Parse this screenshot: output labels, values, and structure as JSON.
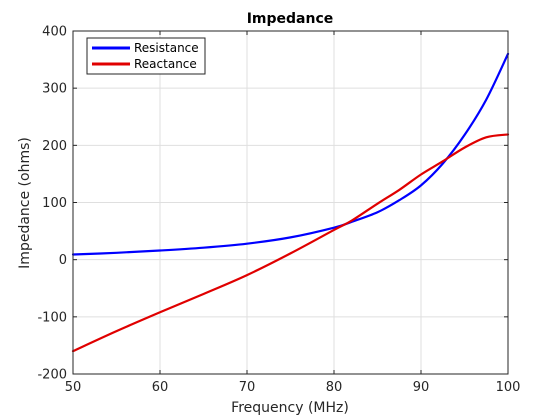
{
  "chart_data": {
    "type": "line",
    "title": "Impedance",
    "xlabel": "Frequency (MHz)",
    "ylabel": "Impedance (ohms)",
    "xlim": [
      50,
      100
    ],
    "ylim": [
      -200,
      400
    ],
    "xticks": [
      50,
      60,
      70,
      80,
      90,
      100
    ],
    "yticks": [
      -200,
      -100,
      0,
      100,
      200,
      300,
      400
    ],
    "grid": true,
    "legend_position": "top-left",
    "x": [
      50,
      55,
      60,
      65,
      70,
      75,
      80,
      82,
      85,
      87.5,
      90,
      92.5,
      95,
      97.5,
      100
    ],
    "series": [
      {
        "name": "Resistance",
        "color": "#0000ff",
        "values": [
          9,
          12,
          16,
          21,
          28,
          39,
          56,
          66,
          83,
          104,
          130,
          168,
          218,
          280,
          360
        ]
      },
      {
        "name": "Reactance",
        "color": "#e00000",
        "values": [
          -160,
          -125,
          -92,
          -60,
          -27,
          11,
          52,
          68,
          98,
          122,
          149,
          172,
          196,
          214,
          219
        ]
      }
    ]
  }
}
